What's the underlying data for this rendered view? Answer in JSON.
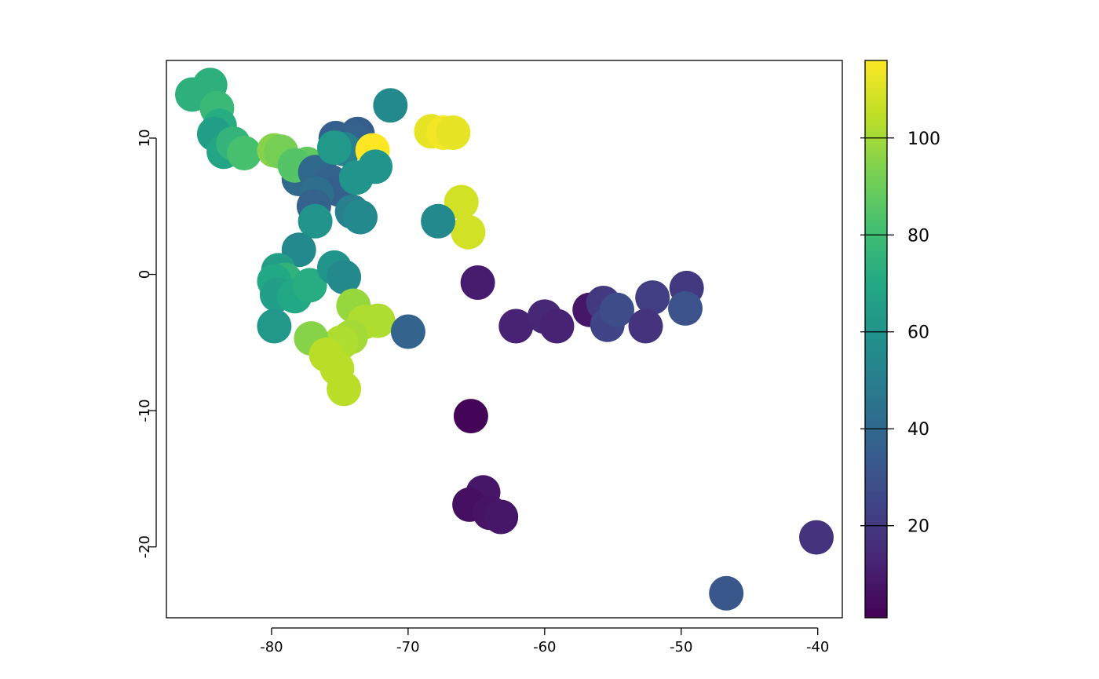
{
  "chart_data": {
    "type": "scatter",
    "title": "",
    "xlabel": "",
    "ylabel": "",
    "xlim": [
      -87.7,
      -38.2
    ],
    "ylim": [
      -25.2,
      15.7
    ],
    "x_ticks": [
      -80,
      -70,
      -60,
      -50,
      -40
    ],
    "x_tick_labels": [
      "-80",
      "-70",
      "-60",
      "-50",
      "-40"
    ],
    "y_ticks": [
      -20,
      -10,
      0,
      10
    ],
    "y_tick_labels": [
      "-20",
      "-10",
      "0",
      "10"
    ],
    "grid": false,
    "legend": {
      "type": "colorbar",
      "placement": "right",
      "min": 1,
      "max": 116,
      "ticks": [
        20,
        40,
        60,
        80,
        100
      ],
      "tick_labels": [
        "20",
        "40",
        "60",
        "80",
        "100"
      ],
      "palette": "viridis"
    },
    "points": [
      {
        "x": -85.8,
        "y": 13.2,
        "value": 74
      },
      {
        "x": -84.5,
        "y": 13.9,
        "value": 74
      },
      {
        "x": -84.0,
        "y": 12.2,
        "value": 78
      },
      {
        "x": -83.8,
        "y": 10.9,
        "value": 72
      },
      {
        "x": -84.2,
        "y": 10.3,
        "value": 66
      },
      {
        "x": -83.5,
        "y": 9.0,
        "value": 68
      },
      {
        "x": -82.8,
        "y": 9.6,
        "value": 76
      },
      {
        "x": -82.0,
        "y": 8.9,
        "value": 82
      },
      {
        "x": -79.8,
        "y": 9.1,
        "value": 95
      },
      {
        "x": -79.3,
        "y": 9.0,
        "value": 92
      },
      {
        "x": -78.0,
        "y": 7.0,
        "value": 40
      },
      {
        "x": -77.4,
        "y": 8.1,
        "value": 88
      },
      {
        "x": -78.3,
        "y": 8.0,
        "value": 85
      },
      {
        "x": -76.8,
        "y": 7.5,
        "value": 40
      },
      {
        "x": -76.3,
        "y": 7.3,
        "value": 40
      },
      {
        "x": -75.7,
        "y": 6.8,
        "value": 38
      },
      {
        "x": -75.0,
        "y": 6.2,
        "value": 36
      },
      {
        "x": -76.7,
        "y": 5.9,
        "value": 43
      },
      {
        "x": -76.9,
        "y": 5.0,
        "value": 37
      },
      {
        "x": -75.3,
        "y": 10.0,
        "value": 36
      },
      {
        "x": -73.7,
        "y": 10.3,
        "value": 35
      },
      {
        "x": -74.1,
        "y": 9.9,
        "value": 37
      },
      {
        "x": -74.7,
        "y": 9.2,
        "value": 50
      },
      {
        "x": -75.4,
        "y": 9.3,
        "value": 62
      },
      {
        "x": -72.6,
        "y": 9.1,
        "value": 116
      },
      {
        "x": -72.4,
        "y": 7.9,
        "value": 60
      },
      {
        "x": -73.8,
        "y": 7.1,
        "value": 60
      },
      {
        "x": -74.1,
        "y": 4.6,
        "value": 50
      },
      {
        "x": -73.5,
        "y": 4.2,
        "value": 55
      },
      {
        "x": -76.8,
        "y": 3.9,
        "value": 60
      },
      {
        "x": -71.3,
        "y": 12.4,
        "value": 55
      },
      {
        "x": -68.3,
        "y": 10.5,
        "value": 112
      },
      {
        "x": -67.4,
        "y": 10.4,
        "value": 114
      },
      {
        "x": -66.7,
        "y": 10.4,
        "value": 112
      },
      {
        "x": -66.1,
        "y": 5.3,
        "value": 108
      },
      {
        "x": -65.6,
        "y": 3.1,
        "value": 108
      },
      {
        "x": -67.8,
        "y": 3.9,
        "value": 55
      },
      {
        "x": -78.0,
        "y": 1.8,
        "value": 55
      },
      {
        "x": -79.5,
        "y": 0.3,
        "value": 65
      },
      {
        "x": -79.0,
        "y": -0.4,
        "value": 75
      },
      {
        "x": -79.8,
        "y": -0.5,
        "value": 70
      },
      {
        "x": -79.6,
        "y": -1.5,
        "value": 66
      },
      {
        "x": -78.3,
        "y": -1.6,
        "value": 70
      },
      {
        "x": -77.2,
        "y": -0.8,
        "value": 72
      },
      {
        "x": -75.4,
        "y": 0.5,
        "value": 60
      },
      {
        "x": -74.7,
        "y": -0.2,
        "value": 55
      },
      {
        "x": -79.8,
        "y": -3.8,
        "value": 62
      },
      {
        "x": -74.0,
        "y": -2.3,
        "value": 98
      },
      {
        "x": -73.2,
        "y": -3.5,
        "value": 102
      },
      {
        "x": -72.2,
        "y": -3.4,
        "value": 102
      },
      {
        "x": -74.2,
        "y": -4.6,
        "value": 100
      },
      {
        "x": -74.9,
        "y": -5.0,
        "value": 102
      },
      {
        "x": -77.1,
        "y": -4.7,
        "value": 95
      },
      {
        "x": -76.0,
        "y": -5.9,
        "value": 104
      },
      {
        "x": -75.2,
        "y": -6.9,
        "value": 104
      },
      {
        "x": -74.7,
        "y": -8.4,
        "value": 104
      },
      {
        "x": -70.0,
        "y": -4.2,
        "value": 38
      },
      {
        "x": -64.9,
        "y": -0.6,
        "value": 10
      },
      {
        "x": -62.1,
        "y": -3.8,
        "value": 12
      },
      {
        "x": -60.0,
        "y": -3.1,
        "value": 14
      },
      {
        "x": -59.1,
        "y": -3.8,
        "value": 12
      },
      {
        "x": -56.7,
        "y": -2.6,
        "value": 8
      },
      {
        "x": -55.7,
        "y": -2.1,
        "value": 20
      },
      {
        "x": -55.4,
        "y": -3.7,
        "value": 24
      },
      {
        "x": -54.7,
        "y": -2.6,
        "value": 28
      },
      {
        "x": -52.1,
        "y": -1.7,
        "value": 22
      },
      {
        "x": -52.6,
        "y": -3.8,
        "value": 18
      },
      {
        "x": -49.6,
        "y": -1.0,
        "value": 20
      },
      {
        "x": -49.7,
        "y": -2.5,
        "value": 30
      },
      {
        "x": -65.4,
        "y": -10.4,
        "value": 2
      },
      {
        "x": -64.5,
        "y": -16.0,
        "value": 8
      },
      {
        "x": -65.5,
        "y": -16.9,
        "value": 6
      },
      {
        "x": -64.0,
        "y": -17.5,
        "value": 7
      },
      {
        "x": -63.2,
        "y": -17.8,
        "value": 8
      },
      {
        "x": -40.1,
        "y": -19.3,
        "value": 18
      },
      {
        "x": -46.7,
        "y": -23.4,
        "value": 32
      }
    ]
  }
}
